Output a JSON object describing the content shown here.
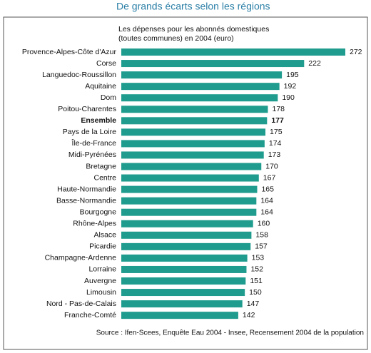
{
  "chart_data": {
    "type": "bar",
    "orientation": "horizontal",
    "title": "De grands écarts selon les régions",
    "subtitle": [
      "Les dépenses pour les abonnés domestiques",
      "(toutes communes) en 2004 (euro)"
    ],
    "source": "Source : Ifen-Scees, Enquête Eau 2004 - Insee, Recensement 2004 de la population",
    "categories": [
      "Provence-Alpes-Côte d'Azur",
      "Corse",
      "Languedoc-Roussillon",
      "Aquitaine",
      "Dom",
      "Poitou-Charentes",
      "Ensemble",
      "Pays de la Loire",
      "Île-de-France",
      "Midi-Pyrénées",
      "Bretagne",
      "Centre",
      "Haute-Normandie",
      "Basse-Normandie",
      "Bourgogne",
      "Rhône-Alpes",
      "Alsace",
      "Picardie",
      "Champagne-Ardenne",
      "Lorraine",
      "Auvergne",
      "Limousin",
      "Nord - Pas-de-Calais",
      "Franche-Comté"
    ],
    "values": [
      272,
      222,
      195,
      192,
      190,
      178,
      177,
      175,
      174,
      173,
      170,
      167,
      165,
      164,
      164,
      160,
      158,
      157,
      153,
      152,
      151,
      150,
      147,
      142
    ],
    "color": "#1f9c8e",
    "bold_category_index": 6
  }
}
